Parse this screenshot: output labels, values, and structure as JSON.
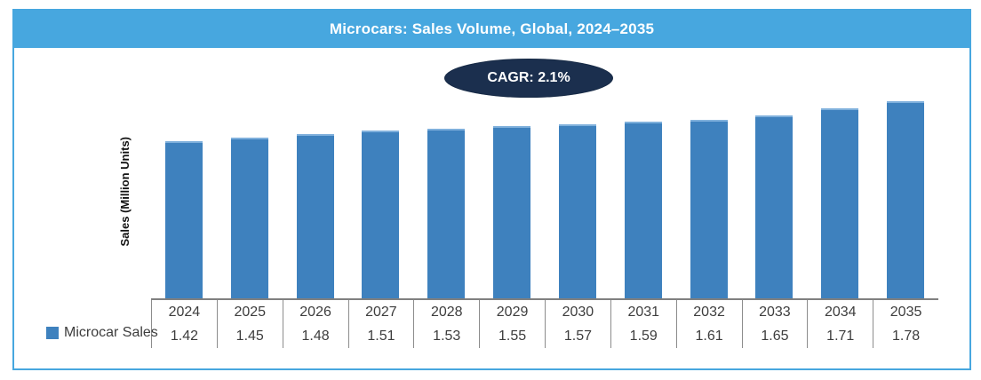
{
  "title": "Microcars: Sales Volume, Global, 2024–2035",
  "cagr_badge": "CAGR: 2.1%",
  "y_axis_label": "Sales (Million Units)",
  "legend": {
    "label": "Microcar Sales"
  },
  "colors": {
    "header_and_border": "#47A7DF",
    "bar_fill": "#3E81BE",
    "bar_top_edge": "#7FB0DC",
    "badge_fill": "#1B2F4E",
    "divider_line": "#8C8C8C",
    "axis_line": "#808080",
    "table_text": "#3D3D3D",
    "title_text": "#FFFFFF"
  },
  "chart_data": {
    "type": "bar",
    "title": "Microcars: Sales Volume, Global, 2024–2035",
    "categories": [
      "2024",
      "2025",
      "2026",
      "2027",
      "2028",
      "2029",
      "2030",
      "2031",
      "2032",
      "2033",
      "2034",
      "2035"
    ],
    "series": [
      {
        "name": "Microcar Sales",
        "values": [
          1.42,
          1.45,
          1.48,
          1.51,
          1.53,
          1.55,
          1.57,
          1.59,
          1.61,
          1.65,
          1.71,
          1.78
        ]
      }
    ],
    "xlabel": "",
    "ylabel": "Sales (Million Units)",
    "ylim": [
      0,
      2.24
    ],
    "grid": false,
    "y_axis_ticks_visible": false,
    "legend_position": "bottom-left",
    "data_table_shown": true,
    "annotation": "CAGR: 2.1%"
  }
}
